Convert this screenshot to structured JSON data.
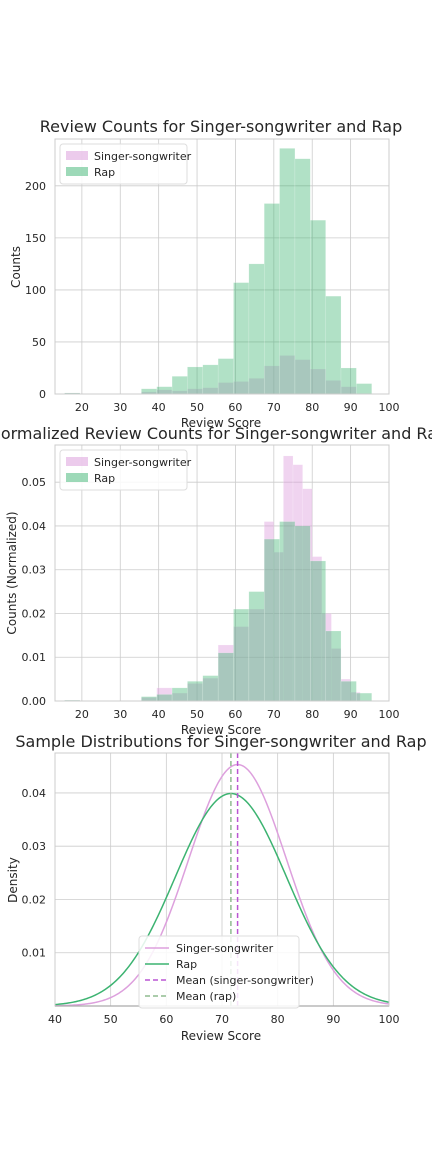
{
  "chart_data": [
    {
      "type": "bar",
      "title": "Review Counts for Singer-songwriter and Rap",
      "xlabel": "Review Score",
      "ylabel": "Counts",
      "xlim": [
        13,
        100
      ],
      "ylim": [
        0,
        245
      ],
      "xticks": [
        20,
        30,
        40,
        50,
        60,
        70,
        80,
        90,
        100
      ],
      "yticks": [
        0,
        50,
        100,
        150,
        200
      ],
      "grid": true,
      "legend": "top-left",
      "series": [
        {
          "name": "Singer-songwriter",
          "color": "#dda0dd",
          "opacity": 0.45,
          "bins": [
            [
              15.5,
              19.5,
              1
            ],
            [
              35.5,
              39.5,
              2
            ],
            [
              39.5,
              43.5,
              4
            ],
            [
              43.5,
              47.5,
              3
            ],
            [
              47.5,
              51.5,
              5
            ],
            [
              51.5,
              55.5,
              6
            ],
            [
              55.5,
              59.5,
              11
            ],
            [
              59.5,
              63.5,
              12
            ],
            [
              63.5,
              67.5,
              15
            ],
            [
              67.5,
              71.5,
              27
            ],
            [
              71.5,
              75.5,
              37
            ],
            [
              75.5,
              79.5,
              33
            ],
            [
              79.5,
              83.5,
              24
            ],
            [
              83.5,
              87.5,
              13
            ],
            [
              87.5,
              91.5,
              7
            ]
          ]
        },
        {
          "name": "Rap",
          "color": "#3cb371",
          "opacity": 0.4,
          "bins": [
            [
              15.5,
              19.5,
              1
            ],
            [
              35.5,
              39.5,
              5
            ],
            [
              39.5,
              43.5,
              7
            ],
            [
              43.5,
              47.5,
              17
            ],
            [
              47.5,
              51.5,
              26
            ],
            [
              51.5,
              55.5,
              28
            ],
            [
              55.5,
              59.5,
              34
            ],
            [
              59.5,
              63.5,
              107
            ],
            [
              63.5,
              67.5,
              125
            ],
            [
              67.5,
              71.5,
              183
            ],
            [
              71.5,
              75.5,
              236
            ],
            [
              75.5,
              79.5,
              226
            ],
            [
              79.5,
              83.5,
              167
            ],
            [
              83.5,
              87.5,
              94
            ],
            [
              87.5,
              91.5,
              25
            ],
            [
              91.5,
              95.5,
              10
            ]
          ]
        }
      ]
    },
    {
      "type": "bar",
      "title": "Normalized Review Counts for Singer-songwriter and Rap",
      "xlabel": "Review Score",
      "ylabel": "Counts (Normalized)",
      "xlim": [
        13,
        100
      ],
      "ylim": [
        0,
        0.0585
      ],
      "xticks": [
        20,
        30,
        40,
        50,
        60,
        70,
        80,
        90,
        100
      ],
      "yticks": [
        0.0,
        0.01,
        0.02,
        0.03,
        0.04,
        0.05
      ],
      "ytick_labels": [
        "0.00",
        "0.01",
        "0.02",
        "0.03",
        "0.04",
        "0.05"
      ],
      "grid": true,
      "legend": "top-left",
      "series": [
        {
          "name": "Singer-songwriter",
          "color": "#dda0dd",
          "opacity": 0.45,
          "bins": [
            [
              15.5,
              19.5,
              0.0002
            ],
            [
              35.5,
              39.5,
              0.0008
            ],
            [
              39.5,
              43.5,
              0.003
            ],
            [
              43.5,
              47.5,
              0.0018
            ],
            [
              47.5,
              51.5,
              0.004
            ],
            [
              51.5,
              55.5,
              0.0052
            ],
            [
              55.5,
              59.5,
              0.0128
            ],
            [
              59.5,
              63.5,
              0.017
            ],
            [
              63.5,
              67.5,
              0.021
            ],
            [
              67.5,
              70.0,
              0.041
            ],
            [
              70.0,
              72.5,
              0.034
            ],
            [
              72.5,
              75.0,
              0.056
            ],
            [
              75.0,
              77.5,
              0.054
            ],
            [
              77.5,
              80.0,
              0.0485
            ],
            [
              80.0,
              82.5,
              0.033
            ],
            [
              82.5,
              85.0,
              0.02
            ],
            [
              85.0,
              87.5,
              0.012
            ],
            [
              87.5,
              90.0,
              0.005
            ],
            [
              90.0,
              92.5,
              0.002
            ]
          ]
        },
        {
          "name": "Rap",
          "color": "#3cb371",
          "opacity": 0.4,
          "bins": [
            [
              15.5,
              19.5,
              0.0002
            ],
            [
              35.5,
              39.5,
              0.001
            ],
            [
              39.5,
              43.5,
              0.0015
            ],
            [
              43.5,
              47.5,
              0.003
            ],
            [
              47.5,
              51.5,
              0.0045
            ],
            [
              51.5,
              55.5,
              0.0058
            ],
            [
              55.5,
              59.5,
              0.011
            ],
            [
              59.5,
              63.5,
              0.021
            ],
            [
              63.5,
              67.5,
              0.025
            ],
            [
              67.5,
              71.5,
              0.037
            ],
            [
              71.5,
              75.5,
              0.041
            ],
            [
              75.5,
              79.5,
              0.04
            ],
            [
              79.5,
              83.5,
              0.032
            ],
            [
              83.5,
              87.5,
              0.016
            ],
            [
              87.5,
              91.5,
              0.0045
            ],
            [
              91.5,
              95.5,
              0.0018
            ]
          ]
        }
      ]
    },
    {
      "type": "line",
      "title": "Sample Distributions for Singer-songwriter and Rap",
      "xlabel": "Review Score",
      "ylabel": "Density",
      "xlim": [
        40,
        100
      ],
      "ylim": [
        0,
        0.0475
      ],
      "xticks": [
        40,
        50,
        60,
        70,
        80,
        90,
        100
      ],
      "yticks": [
        0.01,
        0.02,
        0.03,
        0.04
      ],
      "grid": true,
      "legend": "bottom-center",
      "series": [
        {
          "name": "Singer-songwriter",
          "color": "#dda0dd",
          "style": "solid",
          "mean": 72.8,
          "std": 8.8
        },
        {
          "name": "Rap",
          "color": "#3cb371",
          "style": "solid",
          "mean": 71.6,
          "std": 10.0
        },
        {
          "name": "Mean (singer-songwriter)",
          "color": "#ba55d3",
          "style": "dashed",
          "x": 72.8
        },
        {
          "name": "Mean (rap)",
          "color": "#8fbc8f",
          "style": "dashed",
          "x": 71.6
        }
      ]
    }
  ]
}
